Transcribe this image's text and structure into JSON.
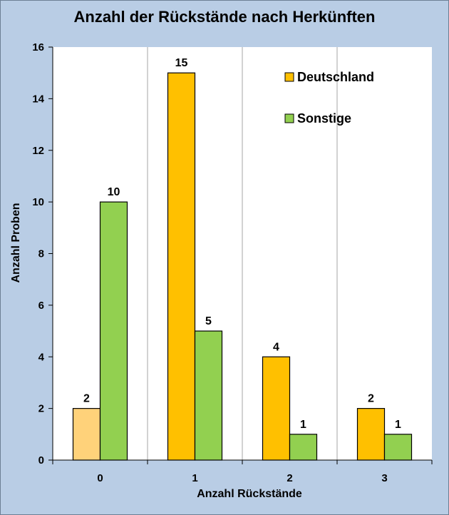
{
  "chart_data": {
    "type": "bar",
    "title": "Anzahl der Rückstände nach Herkünften",
    "xlabel": "Anzahl Rückstände",
    "ylabel": "Anzahl Proben",
    "categories": [
      "0",
      "1",
      "2",
      "3"
    ],
    "series": [
      {
        "name": "Deutschland",
        "values": [
          2,
          15,
          4,
          2
        ],
        "color": "#ffc000",
        "highlight_color": "#ffd27a"
      },
      {
        "name": "Sonstige",
        "values": [
          10,
          5,
          1,
          1
        ],
        "color": "#92d050"
      }
    ],
    "ylim": [
      0,
      16
    ],
    "yticks": [
      0,
      2,
      4,
      6,
      8,
      10,
      12,
      14,
      16
    ],
    "grid": "vertical separators between categories",
    "legend": "top-right"
  }
}
